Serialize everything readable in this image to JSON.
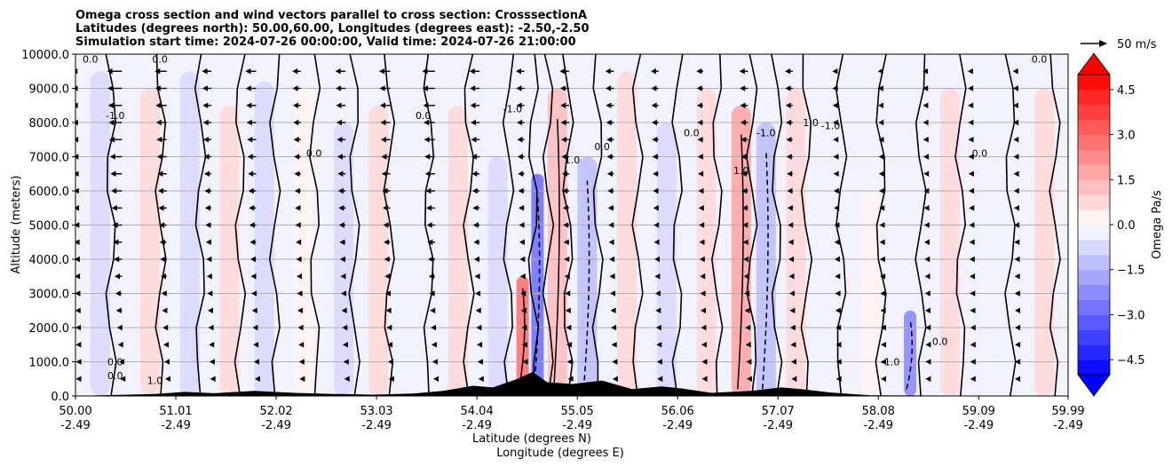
{
  "chart_data": {
    "type": "heatmap",
    "title_lines": [
      "Omega cross section and wind vectors parallel to cross section: CrosssectionA",
      "Latitudes (degrees north): 50.00,60.00, Longitudes (degrees east): -2.50,-2.50",
      "Simulation start time: 2024-07-26 00:00:00, Valid time: 2024-07-26 21:00:00"
    ],
    "ylabel": "Altitude (meters)",
    "xlabel_lat": "Latitude (degrees N)",
    "xlabel_lon": "Longitude (degrees E)",
    "ylim": [
      0,
      10000
    ],
    "yticks": [
      {
        "value": 0,
        "label": "0.0"
      },
      {
        "value": 1000,
        "label": "1000.0"
      },
      {
        "value": 2000,
        "label": "2000.0"
      },
      {
        "value": 3000,
        "label": "3000.0"
      },
      {
        "value": 4000,
        "label": "4000.0"
      },
      {
        "value": 5000,
        "label": "5000.0"
      },
      {
        "value": 6000,
        "label": "6000.0"
      },
      {
        "value": 7000,
        "label": "7000.0"
      },
      {
        "value": 8000,
        "label": "8000.0"
      },
      {
        "value": 9000,
        "label": "9000.0"
      },
      {
        "value": 10000,
        "label": "10000.0"
      }
    ],
    "xlim": [
      50.0,
      59.99
    ],
    "xticks": [
      {
        "value": 50.0,
        "lat": "50.00",
        "lon": "-2.49"
      },
      {
        "value": 51.01,
        "lat": "51.01",
        "lon": "-2.49"
      },
      {
        "value": 52.02,
        "lat": "52.02",
        "lon": "-2.49"
      },
      {
        "value": 53.03,
        "lat": "53.03",
        "lon": "-2.49"
      },
      {
        "value": 54.04,
        "lat": "54.04",
        "lon": "-2.49"
      },
      {
        "value": 55.05,
        "lat": "55.05",
        "lon": "-2.49"
      },
      {
        "value": 56.06,
        "lat": "56.06",
        "lon": "-2.49"
      },
      {
        "value": 57.07,
        "lat": "57.07",
        "lon": "-2.49"
      },
      {
        "value": 58.08,
        "lat": "58.08",
        "lon": "-2.49"
      },
      {
        "value": 59.09,
        "lat": "59.09",
        "lon": "-2.49"
      },
      {
        "value": 59.99,
        "lat": "59.99",
        "lon": "-2.49"
      }
    ],
    "colorbar": {
      "label": "Omega Pa/s",
      "range": [
        -5.0,
        5.0
      ],
      "step": 0.5,
      "ticks": [
        {
          "value": 4.5,
          "label": "4.5"
        },
        {
          "value": 3.0,
          "label": "3.0"
        },
        {
          "value": 1.5,
          "label": "1.5"
        },
        {
          "value": 0.0,
          "label": "0.0"
        },
        {
          "value": -1.5,
          "label": "−1.5"
        },
        {
          "value": -3.0,
          "label": "−3.0"
        },
        {
          "value": -4.5,
          "label": "−4.5"
        }
      ]
    },
    "quiver_key": {
      "label": "50 m/s",
      "speed": 50
    },
    "contour_levels": [
      -1.0,
      0.0,
      1.0
    ],
    "omega_bands": [
      {
        "lat": 50.25,
        "ztop": 9500,
        "omega": -0.8
      },
      {
        "lat": 50.75,
        "ztop": 9000,
        "omega": 0.5
      },
      {
        "lat": 51.15,
        "ztop": 9500,
        "omega": -0.9
      },
      {
        "lat": 51.55,
        "ztop": 8500,
        "omega": 0.6
      },
      {
        "lat": 51.9,
        "ztop": 9200,
        "omega": -0.7
      },
      {
        "lat": 52.3,
        "ztop": 9000,
        "omega": 0.4
      },
      {
        "lat": 52.7,
        "ztop": 8000,
        "omega": -0.6
      },
      {
        "lat": 53.05,
        "ztop": 8500,
        "omega": 0.7
      },
      {
        "lat": 53.45,
        "ztop": 9000,
        "omega": -0.5
      },
      {
        "lat": 53.85,
        "ztop": 8500,
        "omega": 0.5
      },
      {
        "lat": 54.25,
        "ztop": 7000,
        "omega": -0.8
      },
      {
        "lat": 54.5,
        "ztop": 3500,
        "omega": 2.5
      },
      {
        "lat": 54.65,
        "ztop": 6500,
        "omega": -2.8
      },
      {
        "lat": 54.85,
        "ztop": 9000,
        "omega": 1.2
      },
      {
        "lat": 55.15,
        "ztop": 7000,
        "omega": -1.5
      },
      {
        "lat": 55.55,
        "ztop": 9500,
        "omega": 0.8
      },
      {
        "lat": 55.95,
        "ztop": 8000,
        "omega": -0.6
      },
      {
        "lat": 56.35,
        "ztop": 9000,
        "omega": 0.6
      },
      {
        "lat": 56.7,
        "ztop": 8500,
        "omega": 1.6
      },
      {
        "lat": 56.95,
        "ztop": 8000,
        "omega": -1.4
      },
      {
        "lat": 57.25,
        "ztop": 9000,
        "omega": 0.7
      },
      {
        "lat": 57.6,
        "ztop": 8500,
        "omega": -0.5
      },
      {
        "lat": 58.0,
        "ztop": 6000,
        "omega": 0.4
      },
      {
        "lat": 58.4,
        "ztop": 2500,
        "omega": -2.4
      },
      {
        "lat": 58.8,
        "ztop": 9000,
        "omega": 0.5
      },
      {
        "lat": 59.3,
        "ztop": 9500,
        "omega": -0.4
      },
      {
        "lat": 59.75,
        "ztop": 9000,
        "omega": 0.5
      }
    ],
    "terrain": [
      {
        "lat": 50.0,
        "z": 0
      },
      {
        "lat": 50.4,
        "z": 30
      },
      {
        "lat": 50.8,
        "z": 60
      },
      {
        "lat": 51.1,
        "z": 120
      },
      {
        "lat": 51.4,
        "z": 80
      },
      {
        "lat": 51.8,
        "z": 150
      },
      {
        "lat": 52.2,
        "z": 90
      },
      {
        "lat": 52.6,
        "z": 60
      },
      {
        "lat": 53.0,
        "z": 40
      },
      {
        "lat": 53.4,
        "z": 70
      },
      {
        "lat": 53.7,
        "z": 150
      },
      {
        "lat": 54.0,
        "z": 300
      },
      {
        "lat": 54.2,
        "z": 250
      },
      {
        "lat": 54.45,
        "z": 500
      },
      {
        "lat": 54.6,
        "z": 700
      },
      {
        "lat": 54.75,
        "z": 400
      },
      {
        "lat": 55.0,
        "z": 350
      },
      {
        "lat": 55.3,
        "z": 450
      },
      {
        "lat": 55.6,
        "z": 200
      },
      {
        "lat": 55.9,
        "z": 280
      },
      {
        "lat": 56.1,
        "z": 220
      },
      {
        "lat": 56.4,
        "z": 90
      },
      {
        "lat": 56.8,
        "z": 150
      },
      {
        "lat": 57.1,
        "z": 250
      },
      {
        "lat": 57.3,
        "z": 200
      },
      {
        "lat": 57.6,
        "z": 100
      },
      {
        "lat": 58.0,
        "z": 20
      },
      {
        "lat": 59.99,
        "z": 0
      }
    ],
    "wind_columns": [
      {
        "lat": 50.0,
        "speed_top": 12
      },
      {
        "lat": 50.45,
        "speed_top": 35
      },
      {
        "lat": 50.9,
        "speed_top": 28
      },
      {
        "lat": 51.35,
        "speed_top": 22
      },
      {
        "lat": 51.8,
        "speed_top": 25
      },
      {
        "lat": 52.25,
        "speed_top": 20
      },
      {
        "lat": 52.7,
        "speed_top": 24
      },
      {
        "lat": 53.15,
        "speed_top": 26
      },
      {
        "lat": 53.6,
        "speed_top": 30
      },
      {
        "lat": 54.05,
        "speed_top": 24
      },
      {
        "lat": 54.5,
        "speed_top": 20
      },
      {
        "lat": 54.95,
        "speed_top": 22
      },
      {
        "lat": 55.4,
        "speed_top": 20
      },
      {
        "lat": 55.85,
        "speed_top": 18
      },
      {
        "lat": 56.3,
        "speed_top": 16
      },
      {
        "lat": 56.75,
        "speed_top": 20
      },
      {
        "lat": 57.2,
        "speed_top": 18
      },
      {
        "lat": 57.65,
        "speed_top": 12
      },
      {
        "lat": 58.1,
        "speed_top": 10
      },
      {
        "lat": 58.55,
        "speed_top": 10
      },
      {
        "lat": 59.0,
        "speed_top": 9
      },
      {
        "lat": 59.45,
        "speed_top": 8
      }
    ],
    "wind_levels": [
      500,
      1000,
      1500,
      2000,
      2500,
      3000,
      3500,
      4000,
      4500,
      5000,
      5500,
      6000,
      6500,
      7000,
      7500,
      8000,
      8500,
      9000,
      9500
    ],
    "contour_labels": [
      {
        "lat": 50.15,
        "z": 9750,
        "text": "0.0"
      },
      {
        "lat": 50.4,
        "z": 8100,
        "text": "-1.0"
      },
      {
        "lat": 50.4,
        "z": 900,
        "text": "0.0"
      },
      {
        "lat": 50.4,
        "z": 500,
        "text": "0.0"
      },
      {
        "lat": 50.85,
        "z": 9750,
        "text": "0.0"
      },
      {
        "lat": 50.8,
        "z": 350,
        "text": "1.0"
      },
      {
        "lat": 52.4,
        "z": 7000,
        "text": "0.0"
      },
      {
        "lat": 53.5,
        "z": 8100,
        "text": "0.0"
      },
      {
        "lat": 54.4,
        "z": 8300,
        "text": "-1.0"
      },
      {
        "lat": 55.0,
        "z": 6800,
        "text": "1.0"
      },
      {
        "lat": 55.3,
        "z": 7200,
        "text": "0.0"
      },
      {
        "lat": 56.2,
        "z": 7600,
        "text": "0.0"
      },
      {
        "lat": 56.7,
        "z": 6500,
        "text": "1.0"
      },
      {
        "lat": 56.95,
        "z": 7600,
        "text": "-1.0"
      },
      {
        "lat": 57.4,
        "z": 7900,
        "text": "1.0"
      },
      {
        "lat": 57.6,
        "z": 7800,
        "text": "-1.0"
      },
      {
        "lat": 58.2,
        "z": 900,
        "text": "-1.0"
      },
      {
        "lat": 58.7,
        "z": 1500,
        "text": "0.0"
      },
      {
        "lat": 59.1,
        "z": 7000,
        "text": "0.0"
      },
      {
        "lat": 59.7,
        "z": 9750,
        "text": "0.0"
      }
    ]
  }
}
